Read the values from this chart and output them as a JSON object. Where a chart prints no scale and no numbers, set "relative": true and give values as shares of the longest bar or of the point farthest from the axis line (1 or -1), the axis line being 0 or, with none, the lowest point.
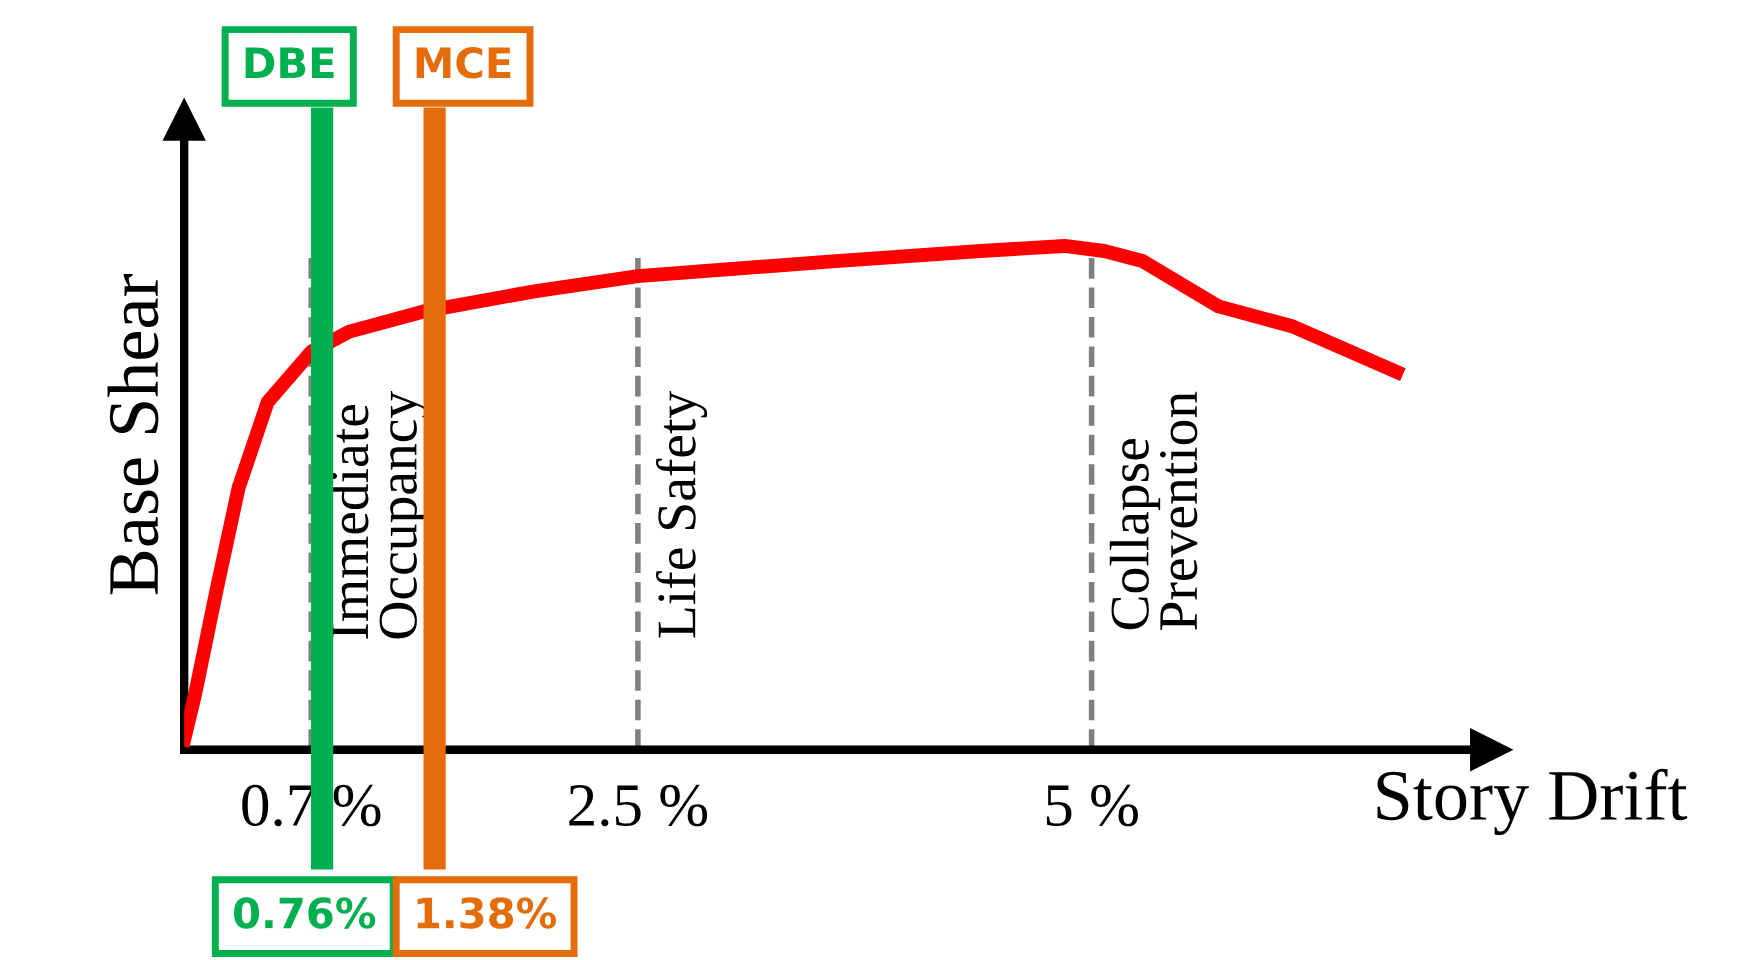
{
  "chart_data": {
    "type": "line",
    "relative": true,
    "xlabel": "Story Drift",
    "ylabel": "Base Shear",
    "x": [
      0,
      0.06,
      0.18,
      0.3,
      0.46,
      0.7,
      0.91,
      1.32,
      1.93,
      2.5,
      3.59,
      4.39,
      4.85,
      5.07,
      5.28,
      5.7,
      6.11,
      6.68
    ],
    "series": [
      {
        "color": "#ff0000",
        "values": [
          0.02,
          0.11,
          0.32,
          0.52,
          0.69,
          0.79,
          0.83,
          0.87,
          0.91,
          0.94,
          0.97,
          0.99,
          1.0,
          0.99,
          0.97,
          0.88,
          0.84,
          0.75
        ]
      }
    ],
    "xlim": [
      0,
      7.2
    ],
    "xticks": [
      {
        "value": 0.7,
        "label": "0.7 %"
      },
      {
        "value": 2.5,
        "label": "2.5 %"
      },
      {
        "value": 5,
        "label": "5 %"
      }
    ],
    "ref_lines": [
      {
        "axis": "x",
        "value": 0.7,
        "label": "Immediate\nOccupancy",
        "color": "#808080",
        "line_style": "dashed"
      },
      {
        "axis": "x",
        "value": 2.5,
        "label": "Life Safety",
        "color": "#808080",
        "line_style": "dashed"
      },
      {
        "axis": "x",
        "value": 5,
        "label": "Collapse\nPrevention",
        "color": "#808080",
        "line_style": "dashed"
      },
      {
        "axis": "x",
        "value": 0.76,
        "label": "DBE",
        "color": "#00b050",
        "line_style": "solid"
      },
      {
        "axis": "x",
        "value": 1.38,
        "label": "MCE",
        "color": "#e46c0a",
        "line_style": "solid"
      }
    ],
    "annotations": [
      "0.76%",
      "1.38%"
    ]
  }
}
